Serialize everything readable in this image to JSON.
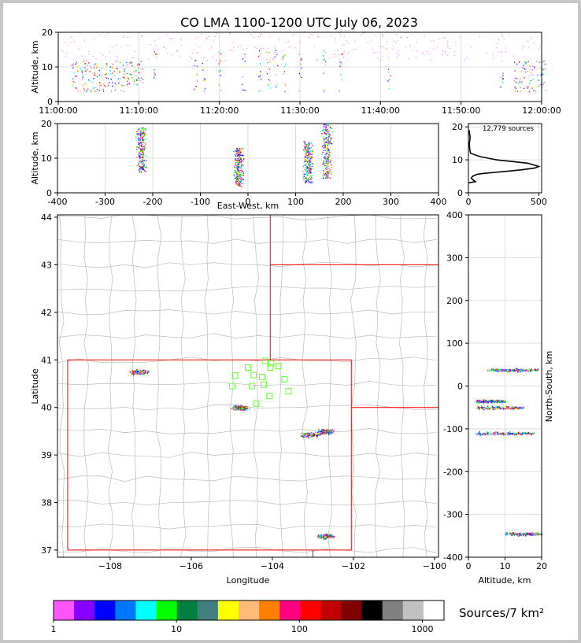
{
  "figure": {
    "title": "CO LMA 1100-1200 UTC July 06, 2023",
    "colorbar_label": "Sources/7 km²"
  },
  "chart_data": [
    {
      "panel": "altitude-vs-time",
      "type": "scatter",
      "ylabel": "Altitude, km",
      "ylim": [
        0,
        20
      ],
      "yticks": [
        0,
        10,
        20
      ],
      "xticks": [
        "11:00:00",
        "11:10:00",
        "11:20:00",
        "11:30:00",
        "11:40:00",
        "11:50:00",
        "12:00:00"
      ],
      "xrange_minutes": [
        0,
        60
      ],
      "grid": true,
      "activity_minutes": [
        2,
        3,
        4,
        5,
        6,
        7,
        8,
        9,
        10,
        12,
        17,
        18,
        20,
        23,
        25,
        26,
        27,
        28,
        30,
        33,
        35,
        41,
        55,
        57,
        58,
        59,
        60
      ]
    },
    {
      "panel": "altitude-vs-east-west",
      "type": "scatter",
      "xlabel": "East-West, km",
      "ylabel": "Altitude, km",
      "xlim": [
        -400,
        400
      ],
      "ylim": [
        0,
        20
      ],
      "xticks": [
        -400,
        -300,
        -200,
        -100,
        0,
        100,
        200,
        300,
        400
      ],
      "yticks": [
        0,
        10,
        20
      ],
      "clusters": [
        {
          "x": -225,
          "alt_min": 6,
          "alt_max": 19
        },
        {
          "x": -20,
          "alt_min": 2,
          "alt_max": 13
        },
        {
          "x": 125,
          "alt_min": 3,
          "alt_max": 15
        },
        {
          "x": 165,
          "alt_min": 4,
          "alt_max": 20
        }
      ]
    },
    {
      "panel": "altitude-histogram",
      "type": "line",
      "annotation": "12,779 sources",
      "xlim": [
        0,
        520
      ],
      "ylim": [
        0,
        21
      ],
      "xticks": [
        0,
        500
      ],
      "yticks": [
        0,
        10,
        20
      ],
      "x": [
        0,
        50,
        30,
        20,
        30,
        60,
        110,
        190,
        290,
        380,
        470,
        500,
        460,
        420,
        200,
        80,
        15,
        10,
        8,
        6,
        10,
        12,
        8,
        5
      ],
      "y": [
        3,
        3.4,
        4,
        4.5,
        5,
        5.6,
        5.9,
        6.2,
        6.6,
        7,
        7.5,
        8,
        8.5,
        9,
        10,
        11,
        12,
        13,
        14,
        15,
        16,
        17,
        18,
        19
      ]
    },
    {
      "panel": "plan-view-map",
      "type": "scatter",
      "xlabel": "Longitude",
      "ylabel": "Latitude",
      "xlim": [
        -109.3,
        -99.9
      ],
      "ylim": [
        36.85,
        44.05
      ],
      "xticks": [
        -108,
        -106,
        -104,
        -102,
        -100
      ],
      "yticks": [
        37,
        38,
        39,
        40,
        41,
        42,
        43,
        44
      ],
      "lightning_clusters": [
        {
          "lon": -107.3,
          "lat": 40.75
        },
        {
          "lon": -104.8,
          "lat": 40.0
        },
        {
          "lon": -103.1,
          "lat": 39.43
        },
        {
          "lon": -102.7,
          "lat": 39.5
        },
        {
          "lon": -102.7,
          "lat": 37.3
        }
      ],
      "stations": [
        {
          "lon": -104.18,
          "lat": 40.98
        },
        {
          "lon": -104.03,
          "lat": 40.93
        },
        {
          "lon": -104.05,
          "lat": 40.84
        },
        {
          "lon": -103.85,
          "lat": 40.87
        },
        {
          "lon": -104.6,
          "lat": 40.84
        },
        {
          "lon": -104.92,
          "lat": 40.67
        },
        {
          "lon": -104.46,
          "lat": 40.68
        },
        {
          "lon": -104.25,
          "lat": 40.64
        },
        {
          "lon": -103.7,
          "lat": 40.59
        },
        {
          "lon": -104.99,
          "lat": 40.45
        },
        {
          "lon": -104.5,
          "lat": 40.45
        },
        {
          "lon": -104.21,
          "lat": 40.48
        },
        {
          "lon": -103.6,
          "lat": 40.34
        },
        {
          "lon": -104.07,
          "lat": 40.24
        },
        {
          "lon": -104.4,
          "lat": 40.08
        }
      ]
    },
    {
      "panel": "north-south-vs-altitude",
      "type": "scatter",
      "xlabel": "Altitude, km",
      "ylabel": "North-South, km",
      "xlim": [
        0,
        20
      ],
      "ylim": [
        -400,
        400
      ],
      "xticks": [
        0,
        10,
        20
      ],
      "yticks": [
        -400,
        -300,
        -200,
        -100,
        0,
        100,
        200,
        300,
        400
      ],
      "clusters": [
        {
          "ns": 38,
          "alt_min": 5,
          "alt_max": 19
        },
        {
          "ns": -35,
          "alt_min": 2,
          "alt_max": 10
        },
        {
          "ns": -50,
          "alt_min": 2,
          "alt_max": 15
        },
        {
          "ns": -110,
          "alt_min": 2,
          "alt_max": 18
        },
        {
          "ns": -345,
          "alt_min": 10,
          "alt_max": 20
        }
      ]
    },
    {
      "panel": "colorbar",
      "type": "heatmap",
      "scale": "log",
      "range": [
        1,
        1500
      ],
      "tick_labels": [
        "1",
        "10",
        "100",
        "1000"
      ],
      "colors": [
        "#ff55ff",
        "#8800ff",
        "#0000ff",
        "#0077ff",
        "#00ffff",
        "#00ff00",
        "#008040",
        "#408080",
        "#ffff00",
        "#ffbb77",
        "#ff8000",
        "#ff0080",
        "#ff0000",
        "#c00000",
        "#800000",
        "#000000",
        "#808080",
        "#c0c0c0",
        "#ffffff"
      ]
    }
  ]
}
